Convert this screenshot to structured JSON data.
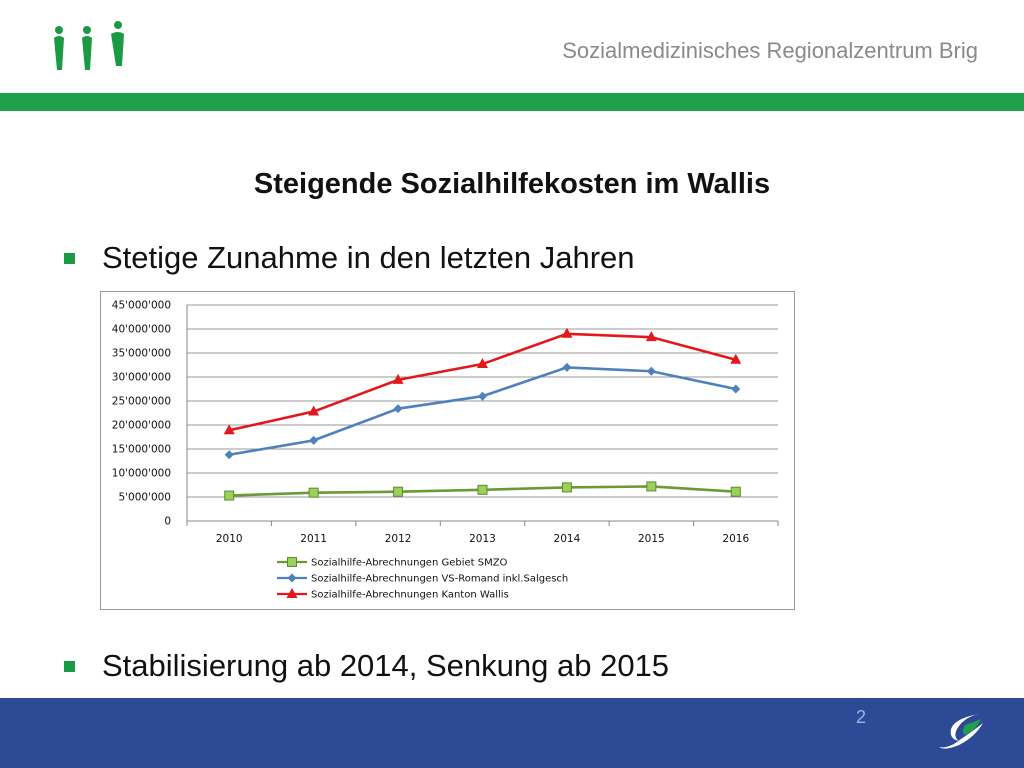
{
  "header": {
    "organization": "Sozialmedizinisches Regionalzentrum Brig"
  },
  "slide": {
    "title": "Steigende Sozialhilfekosten im Wallis",
    "bullets": [
      "Stetige Zunahme in den letzten Jahren",
      "Stabilisierung ab 2014, Senkung ab 2015"
    ],
    "page_number": "2"
  },
  "colors": {
    "green_band": "#1fa04d",
    "footer_blue": "#2c4a96",
    "series_green": "#6b9a35",
    "series_blue": "#4f81bd",
    "series_red": "#e3181b"
  },
  "icons": {
    "header_logo": "three-people-icon",
    "footer_logo": "swoosh-logo-icon"
  },
  "chart_data": {
    "type": "line",
    "title": "",
    "xlabel": "",
    "ylabel": "",
    "categories": [
      "2010",
      "2011",
      "2012",
      "2013",
      "2014",
      "2015",
      "2016"
    ],
    "ylim": [
      0,
      45000000
    ],
    "yticks": [
      {
        "value": 0,
        "label": "0"
      },
      {
        "value": 5000000,
        "label": "5'000'000"
      },
      {
        "value": 10000000,
        "label": "10'000'000"
      },
      {
        "value": 15000000,
        "label": "15'000'000"
      },
      {
        "value": 20000000,
        "label": "20'000'000"
      },
      {
        "value": 25000000,
        "label": "25'000'000"
      },
      {
        "value": 30000000,
        "label": "30'000'000"
      },
      {
        "value": 35000000,
        "label": "35'000'000"
      },
      {
        "value": 40000000,
        "label": "40'000'000"
      },
      {
        "value": 45000000,
        "label": "45'000'000"
      }
    ],
    "grid": true,
    "legend_position": "bottom",
    "series": [
      {
        "name": "Sozialhilfe-Abrechnungen Gebiet SMZO",
        "marker": "square",
        "color": "#6b9a35",
        "values": [
          5300000,
          5900000,
          6100000,
          6500000,
          7000000,
          7200000,
          6100000
        ]
      },
      {
        "name": "Sozialhilfe-Abrechnungen VS-Romand inkl.Salgesch",
        "marker": "diamond",
        "color": "#4f81bd",
        "values": [
          13800000,
          16800000,
          23400000,
          26000000,
          32000000,
          31200000,
          27500000
        ]
      },
      {
        "name": "Sozialhilfe-Abrechnungen Kanton Wallis",
        "marker": "triangle",
        "color": "#e3181b",
        "values": [
          18900000,
          22800000,
          29400000,
          32700000,
          39000000,
          38300000,
          33600000
        ]
      }
    ]
  }
}
